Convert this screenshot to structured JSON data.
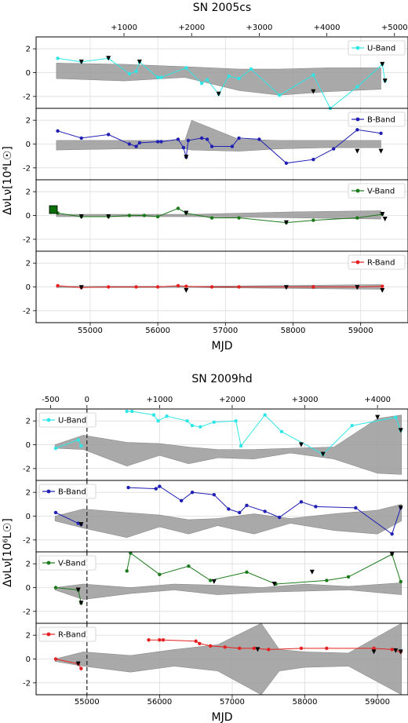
{
  "chart_data": [
    {
      "type": "line",
      "title": "SN 2005cs",
      "xlabel": "MJD",
      "ylabel": "ΔνLν[10⁴L☉]",
      "xlim": [
        54200,
        59700
      ],
      "x_ticks": [
        "55000",
        "56000",
        "57000",
        "58000",
        "59000"
      ],
      "top_ticks": [
        "+1000",
        "+2000",
        "+3000",
        "+4000",
        "+5000"
      ],
      "ylim": [
        -3,
        3
      ],
      "y_ticks": [
        "2",
        "0",
        "-2"
      ],
      "grid": true,
      "legend_position": "top-right",
      "panels": [
        {
          "name": "U-Band",
          "color": "#2ee6e6",
          "x": [
            54520,
            54870,
            55270,
            55580,
            55680,
            55730,
            56000,
            56050,
            56420,
            56650,
            56730,
            56900,
            57050,
            57200,
            57380,
            57800,
            58300,
            58550,
            58950,
            59320,
            59360
          ],
          "y": [
            1.2,
            0.9,
            1.2,
            -0.1,
            0.1,
            0.9,
            -0.4,
            -0.4,
            0.4,
            -0.9,
            -0.6,
            -1.8,
            -0.3,
            -0.5,
            0.3,
            -1.9,
            -0.2,
            -3.0,
            -1.2,
            0.7,
            -0.7
          ],
          "upper_limits": [
            [
              54870,
              0.9
            ],
            [
              55270,
              1.2
            ],
            [
              55730,
              0.9
            ],
            [
              56900,
              -1.8
            ],
            [
              58300,
              -1.6
            ],
            [
              59360,
              -0.7
            ],
            [
              59320,
              0.7
            ]
          ],
          "band_x": [
            54500,
            55500,
            56400,
            57200,
            57800,
            58500,
            59300
          ],
          "band_upper": [
            0.8,
            0.7,
            0.5,
            0.3,
            0.3,
            0.4,
            0.4
          ],
          "band_lower": [
            -0.5,
            -0.7,
            -0.4,
            -1.5,
            -1.9,
            -1.6,
            -1.4
          ]
        },
        {
          "name": "B-Band",
          "color": "#1f1fb4",
          "x": [
            54520,
            54870,
            55270,
            55580,
            55680,
            55730,
            56000,
            56050,
            56300,
            56380,
            56420,
            56450,
            56650,
            56730,
            56800,
            57100,
            57200,
            57500,
            57900,
            58300,
            58600,
            58950,
            59300
          ],
          "y": [
            1.1,
            0.5,
            0.8,
            0.0,
            -0.2,
            0.1,
            0.2,
            0.2,
            0.4,
            -0.3,
            -1.1,
            0.3,
            0.5,
            0.4,
            -0.2,
            -0.2,
            0.5,
            0.4,
            -1.6,
            -1.3,
            -0.4,
            1.2,
            0.9
          ],
          "upper_limits": [
            [
              56420,
              -1.1
            ],
            [
              58950,
              -0.6
            ],
            [
              59300,
              -0.6
            ]
          ],
          "band_x": [
            54500,
            55500,
            56400,
            56500,
            57200,
            57800,
            58500,
            59300
          ],
          "band_upper": [
            0.3,
            0.3,
            0.3,
            2.0,
            0.4,
            0.3,
            0.3,
            0.3
          ],
          "band_lower": [
            -0.5,
            -0.4,
            -0.4,
            -0.5,
            -0.6,
            -0.4,
            -0.3,
            -0.3
          ]
        },
        {
          "name": "V-Band",
          "color": "#1a7a1a",
          "x": [
            54520,
            54870,
            55270,
            55580,
            55800,
            56000,
            56300,
            56420,
            56800,
            57200,
            57900,
            58300,
            58950,
            59320
          ],
          "y": [
            0.2,
            -0.1,
            -0.1,
            0.0,
            0.0,
            -0.1,
            0.6,
            0.2,
            -0.2,
            -0.2,
            -0.6,
            -0.4,
            -0.2,
            0.1
          ],
          "upper_limits": [
            [
              54870,
              -0.1
            ],
            [
              55270,
              -0.1
            ],
            [
              56420,
              0.2
            ],
            [
              57900,
              -0.6
            ],
            [
              59320,
              0.1
            ],
            [
              59360,
              -0.3
            ]
          ],
          "band_x": [
            54500,
            56500,
            58000,
            59300
          ],
          "band_upper": [
            0.1,
            0.1,
            0.3,
            0.4
          ],
          "band_lower": [
            -0.1,
            -0.1,
            -0.2,
            -0.3
          ]
        },
        {
          "name": "R-Band",
          "color": "#e62020",
          "x": [
            54520,
            54870,
            55270,
            55680,
            56000,
            56300,
            56420,
            56800,
            57200,
            57900,
            58300,
            58950,
            59320
          ],
          "y": [
            0.1,
            -0.05,
            0.0,
            0.0,
            0.0,
            0.1,
            0.05,
            0.0,
            0.0,
            0.0,
            0.0,
            0.0,
            0.05
          ],
          "upper_limits": [
            [
              54870,
              -0.05
            ],
            [
              56420,
              -0.3
            ],
            [
              57900,
              -0.05
            ],
            [
              58950,
              -0.05
            ],
            [
              59320,
              -0.3
            ]
          ],
          "band_x": [
            54500,
            56500,
            59300
          ],
          "band_upper": [
            0.05,
            0.05,
            0.2
          ],
          "band_lower": [
            -0.05,
            -0.05,
            -0.2
          ]
        }
      ]
    },
    {
      "type": "line",
      "title": "SN 2009hd",
      "xlabel": "MJD",
      "ylabel": "ΔνLν[10⁶L☉]",
      "xlim": [
        54300,
        59420
      ],
      "x_ticks": [
        "55000",
        "56000",
        "57000",
        "58000",
        "59000"
      ],
      "top_ticks": [
        "-500",
        "0",
        "+1000",
        "+2000",
        "+3000",
        "+4000"
      ],
      "ylim": [
        -3,
        3
      ],
      "y_ticks": [
        "2",
        "0",
        "-2"
      ],
      "grid": true,
      "legend_position": "top-left",
      "explosion_marker": "0",
      "panels": [
        {
          "name": "U-Band",
          "color": "#2ee6e6",
          "x": [
            54570,
            54880,
            54920,
            55550,
            55620,
            55920,
            55980,
            56100,
            56380,
            56450,
            56560,
            56750,
            57050,
            57120,
            57450,
            57680,
            58250,
            58650,
            59250,
            59320
          ],
          "y": [
            -0.3,
            0.4,
            -0.1,
            2.8,
            2.8,
            2.5,
            2.0,
            2.4,
            2.0,
            1.6,
            1.5,
            1.9,
            2.0,
            -0.1,
            2.5,
            1.1,
            -0.8,
            1.6,
            2.3,
            1.2
          ],
          "upper_limits": [
            [
              57950,
              0.0
            ],
            [
              58250,
              -0.8
            ],
            [
              59000,
              2.3
            ],
            [
              59320,
              1.2
            ]
          ],
          "band_x": [
            54560,
            54950,
            55550,
            56000,
            56400,
            56800,
            57300,
            57800,
            58400,
            59000,
            59330
          ],
          "band_upper": [
            0.0,
            0.8,
            0.2,
            0.1,
            -0.2,
            -0.4,
            -0.4,
            -0.3,
            -0.2,
            2.2,
            2.5
          ],
          "band_lower": [
            -0.3,
            -0.4,
            -1.8,
            -0.9,
            -1.6,
            -1.1,
            -1.2,
            -0.7,
            -1.2,
            -2.4,
            -2.5
          ]
        },
        {
          "name": "B-Band",
          "color": "#1f1fb4",
          "x": [
            54570,
            54880,
            54920,
            55570,
            55950,
            56000,
            56300,
            56450,
            56750,
            56950,
            57100,
            57200,
            57450,
            57650,
            57950,
            58150,
            58700,
            59200,
            59320
          ],
          "y": [
            0.3,
            -0.6,
            -0.7,
            2.4,
            2.3,
            2.5,
            1.3,
            2.0,
            1.8,
            0.6,
            0.3,
            0.9,
            0.4,
            -0.1,
            1.2,
            0.8,
            0.7,
            -1.5,
            0.7
          ],
          "upper_limits": [
            [
              54920,
              -0.7
            ],
            [
              59320,
              0.7
            ]
          ],
          "band_x": [
            54560,
            54950,
            55550,
            56000,
            56400,
            56800,
            57300,
            57800,
            58400,
            59000,
            59330
          ],
          "band_upper": [
            0.0,
            0.6,
            0.3,
            0.1,
            -0.3,
            -0.2,
            0.2,
            -0.2,
            0.2,
            0.5,
            1.0
          ],
          "band_lower": [
            -0.4,
            -1.0,
            -1.8,
            -0.9,
            -1.5,
            -0.8,
            -1.5,
            -0.6,
            -1.2,
            -1.5,
            -0.4
          ]
        },
        {
          "name": "V-Band",
          "color": "#1a7a1a",
          "x": [
            54570,
            54880,
            54920,
            55550,
            55600,
            56000,
            56400,
            56700,
            57200,
            57600,
            58300,
            58600,
            59200,
            59320
          ],
          "y": [
            0.0,
            -0.2,
            -1.3,
            1.4,
            2.9,
            1.1,
            1.8,
            0.6,
            1.3,
            0.3,
            0.6,
            0.9,
            2.8,
            0.5
          ],
          "upper_limits": [
            [
              54880,
              -0.2
            ],
            [
              54920,
              -1.3
            ],
            [
              56750,
              0.5
            ],
            [
              57580,
              0.3
            ],
            [
              58100,
              1.3
            ],
            [
              59200,
              2.8
            ]
          ],
          "band_x": [
            54560,
            54950,
            55600,
            56200,
            56800,
            57400,
            58000,
            58600,
            59330
          ],
          "band_upper": [
            0.0,
            0.3,
            0.0,
            0.3,
            0.2,
            0.0,
            0.3,
            0.1,
            0.4
          ],
          "band_lower": [
            -0.2,
            -1.0,
            -0.5,
            -0.2,
            -0.6,
            -0.4,
            -0.3,
            -0.2,
            -0.6
          ]
        },
        {
          "name": "R-Band",
          "color": "#e62020",
          "x": [
            54570,
            54880,
            54920,
            55850,
            56000,
            56050,
            56500,
            56550,
            56700,
            56900,
            57100,
            57300,
            57500,
            57950,
            58300,
            58950,
            59200,
            59320
          ],
          "y": [
            0.0,
            -0.4,
            -0.8,
            1.6,
            1.6,
            1.6,
            1.5,
            1.3,
            1.1,
            1.0,
            0.9,
            0.9,
            0.8,
            0.9,
            0.9,
            0.9,
            0.8,
            0.6
          ],
          "upper_limits": [
            [
              54880,
              -0.4
            ],
            [
              57350,
              0.8
            ],
            [
              58950,
              0.6
            ],
            [
              59250,
              0.7
            ],
            [
              59320,
              0.6
            ]
          ],
          "band_x": [
            54560,
            54950,
            55600,
            56200,
            56800,
            57400,
            57650,
            58000,
            58600,
            59330
          ],
          "band_upper": [
            0.0,
            0.6,
            0.3,
            0.8,
            1.2,
            3.0,
            0.8,
            0.6,
            0.5,
            3.0
          ],
          "band_lower": [
            -0.2,
            -0.6,
            -1.1,
            -0.6,
            -1.0,
            -3.0,
            -1.0,
            -0.7,
            -0.6,
            -3.0
          ]
        }
      ]
    }
  ]
}
